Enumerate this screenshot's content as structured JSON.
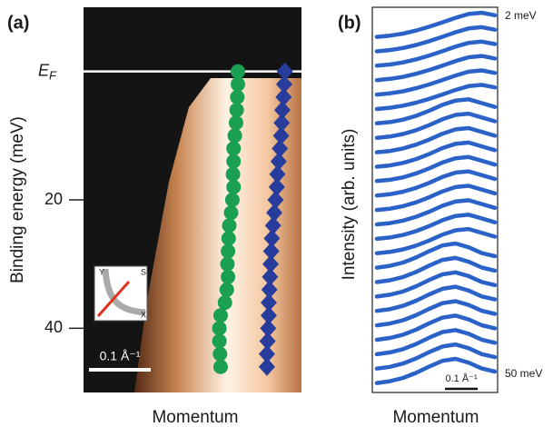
{
  "chart_data": [
    {
      "type": "scatter",
      "panel": "(a)",
      "ylabel": "Binding energy (meV)",
      "xlabel": "Momentum",
      "ylim": [
        50,
        -10
      ],
      "yticks": [
        {
          "value": 0,
          "label": "EF"
        },
        20,
        40
      ],
      "xlim": [
        0,
        0.35
      ],
      "scalebar": {
        "value": 0.1,
        "label": "0.1 Å⁻¹"
      },
      "inset_labels": [
        "Y",
        "S",
        "X"
      ],
      "series": [
        {
          "color": "#1aa050",
          "marker": "circle",
          "x": [
            0.25,
            0.25,
            0.249,
            0.248,
            0.247,
            0.245,
            0.243,
            0.243,
            0.242,
            0.243,
            0.241,
            0.239,
            0.236,
            0.235,
            0.234,
            0.233,
            0.234,
            0.232,
            0.229,
            0.222,
            0.22,
            0.22,
            0.221,
            0.222
          ],
          "values": [
            0,
            2,
            4,
            6,
            8,
            10,
            12,
            14,
            16,
            18,
            20,
            22,
            24,
            26,
            28,
            30,
            32,
            34,
            36,
            38,
            40,
            42,
            44,
            46
          ]
        },
        {
          "color": "#283c9c",
          "marker": "diamond",
          "x": [
            0.326,
            0.325,
            0.324,
            0.322,
            0.321,
            0.32,
            0.318,
            0.316,
            0.314,
            0.313,
            0.311,
            0.309,
            0.307,
            0.305,
            0.304,
            0.303,
            0.302,
            0.301,
            0.3,
            0.3,
            0.299,
            0.298,
            0.297,
            0.297
          ],
          "values": [
            0,
            2,
            4,
            6,
            8,
            10,
            12,
            14,
            16,
            18,
            20,
            22,
            24,
            26,
            28,
            30,
            32,
            34,
            36,
            38,
            40,
            42,
            44,
            46
          ]
        }
      ]
    },
    {
      "type": "waterfall",
      "panel": "(b)",
      "ylabel": "Intensity (arb. units)",
      "xlabel": "Momentum",
      "annotations": [
        "2 meV",
        "50 meV"
      ],
      "scalebar": {
        "value": 0.1,
        "label": "0.1 Å⁻¹"
      },
      "xlim": [
        0,
        0.36
      ],
      "ylim": [
        0,
        1
      ],
      "color": "#2a62c8",
      "x": [
        0,
        0.04,
        0.08,
        0.12,
        0.16,
        0.2,
        0.24,
        0.28,
        0.32,
        0.36
      ],
      "series": [
        {
          "values": [
            0.05,
            0.1,
            0.18,
            0.3,
            0.45,
            0.62,
            0.8,
            0.95,
            1.0,
            0.9
          ]
        },
        {
          "values": [
            0.05,
            0.1,
            0.18,
            0.3,
            0.45,
            0.62,
            0.8,
            0.95,
            1.0,
            0.9
          ]
        },
        {
          "values": [
            0.05,
            0.1,
            0.18,
            0.3,
            0.45,
            0.62,
            0.8,
            0.95,
            1.0,
            0.9
          ]
        },
        {
          "values": [
            0.05,
            0.1,
            0.18,
            0.3,
            0.45,
            0.62,
            0.8,
            0.95,
            1.0,
            0.9
          ]
        },
        {
          "values": [
            0.05,
            0.1,
            0.18,
            0.3,
            0.45,
            0.62,
            0.8,
            0.95,
            1.0,
            0.9
          ]
        },
        {
          "values": [
            0.05,
            0.1,
            0.18,
            0.3,
            0.45,
            0.62,
            0.8,
            0.95,
            1.0,
            0.9
          ]
        },
        {
          "values": [
            0.05,
            0.1,
            0.2,
            0.35,
            0.55,
            0.78,
            0.95,
            1.0,
            0.85,
            0.7
          ]
        },
        {
          "values": [
            0.05,
            0.1,
            0.2,
            0.35,
            0.55,
            0.78,
            0.95,
            1.0,
            0.85,
            0.7
          ]
        },
        {
          "values": [
            0.05,
            0.1,
            0.2,
            0.35,
            0.55,
            0.78,
            0.95,
            1.0,
            0.85,
            0.7
          ]
        },
        {
          "values": [
            0.05,
            0.1,
            0.2,
            0.35,
            0.55,
            0.78,
            0.95,
            1.0,
            0.85,
            0.7
          ]
        },
        {
          "values": [
            0.05,
            0.1,
            0.2,
            0.35,
            0.55,
            0.78,
            0.95,
            1.0,
            0.85,
            0.7
          ]
        },
        {
          "values": [
            0.05,
            0.1,
            0.2,
            0.35,
            0.55,
            0.78,
            0.95,
            1.0,
            0.85,
            0.7
          ]
        },
        {
          "values": [
            0.05,
            0.1,
            0.2,
            0.35,
            0.55,
            0.78,
            0.95,
            1.0,
            0.85,
            0.7
          ]
        },
        {
          "values": [
            0.05,
            0.1,
            0.2,
            0.35,
            0.55,
            0.78,
            0.95,
            1.0,
            0.85,
            0.7
          ]
        },
        {
          "values": [
            0.05,
            0.1,
            0.2,
            0.35,
            0.55,
            0.78,
            0.95,
            1.0,
            0.85,
            0.7
          ]
        },
        {
          "values": [
            0.05,
            0.1,
            0.2,
            0.35,
            0.55,
            0.78,
            0.95,
            1.0,
            0.85,
            0.7
          ]
        },
        {
          "values": [
            0.05,
            0.12,
            0.25,
            0.45,
            0.7,
            0.92,
            1.0,
            0.85,
            0.62,
            0.5
          ]
        },
        {
          "values": [
            0.05,
            0.12,
            0.25,
            0.45,
            0.7,
            0.92,
            1.0,
            0.85,
            0.62,
            0.5
          ]
        },
        {
          "values": [
            0.05,
            0.12,
            0.25,
            0.45,
            0.7,
            0.92,
            1.0,
            0.85,
            0.62,
            0.5
          ]
        },
        {
          "values": [
            0.05,
            0.12,
            0.25,
            0.45,
            0.7,
            0.92,
            1.0,
            0.85,
            0.62,
            0.5
          ]
        },
        {
          "values": [
            0.05,
            0.12,
            0.25,
            0.45,
            0.7,
            0.92,
            1.0,
            0.85,
            0.62,
            0.5
          ]
        },
        {
          "values": [
            0.05,
            0.12,
            0.25,
            0.45,
            0.7,
            0.92,
            1.0,
            0.85,
            0.62,
            0.5
          ]
        },
        {
          "values": [
            0.05,
            0.12,
            0.25,
            0.45,
            0.7,
            0.92,
            1.0,
            0.85,
            0.62,
            0.5
          ]
        },
        {
          "values": [
            0.05,
            0.12,
            0.25,
            0.45,
            0.7,
            0.92,
            1.0,
            0.85,
            0.62,
            0.5
          ]
        },
        {
          "values": [
            0.05,
            0.12,
            0.25,
            0.45,
            0.7,
            0.92,
            1.0,
            0.85,
            0.62,
            0.5
          ]
        }
      ]
    }
  ]
}
